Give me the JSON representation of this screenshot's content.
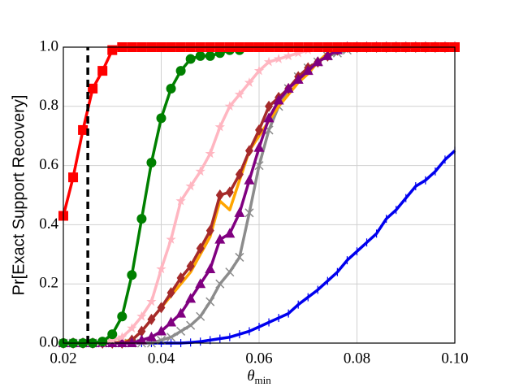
{
  "chart_data": {
    "type": "line",
    "ylabel": "Pr[Exact Support Recovery]",
    "xlabel": "θ",
    "xlabel_sub": "min",
    "xlim": [
      0.02,
      0.1
    ],
    "ylim": [
      0,
      1
    ],
    "xticks": [
      0.02,
      0.04,
      0.06,
      0.08,
      {
        "value": 0.1,
        "label": "0.10"
      }
    ],
    "yticks": [
      {
        "value": 0,
        "label": "0.0"
      },
      0.2,
      0.4,
      0.6,
      0.8,
      {
        "value": 1,
        "label": "1.0"
      }
    ],
    "grid": true,
    "reference_x": 0.025,
    "reference_color": "#000000",
    "x": [
      0.02,
      0.022,
      0.024,
      0.026,
      0.028,
      0.03,
      0.032,
      0.034,
      0.036,
      0.038,
      0.04,
      0.042,
      0.044,
      0.046,
      0.048,
      0.05,
      0.052,
      0.054,
      0.056,
      0.058,
      0.06,
      0.062,
      0.064,
      0.066,
      0.068,
      0.07,
      0.072,
      0.074,
      0.076,
      0.078,
      0.08,
      0.082,
      0.084,
      0.086,
      0.088,
      0.09,
      0.092,
      0.094,
      0.096,
      0.098,
      0.1
    ],
    "series": [
      {
        "color": "#0000ee",
        "marker": "tick",
        "values": [
          0,
          0,
          0,
          0,
          0,
          0,
          0,
          0,
          0,
          0,
          0,
          0,
          0,
          0.002,
          0.005,
          0.01,
          0.015,
          0.02,
          0.03,
          0.04,
          0.055,
          0.07,
          0.085,
          0.1,
          0.13,
          0.155,
          0.18,
          0.21,
          0.24,
          0.28,
          0.31,
          0.34,
          0.37,
          0.42,
          0.45,
          0.49,
          0.53,
          0.55,
          0.58,
          0.62,
          0.65
        ]
      },
      {
        "color": "#8c8c8c",
        "marker": "x",
        "values": [
          0,
          0,
          0,
          0,
          0,
          0,
          0,
          0,
          0,
          0,
          0.01,
          0.02,
          0.04,
          0.06,
          0.09,
          0.14,
          0.2,
          0.24,
          0.29,
          0.44,
          0.6,
          0.72,
          0.8,
          0.86,
          0.9,
          0.93,
          0.95,
          0.97,
          0.98,
          0.99,
          1,
          1,
          1,
          1,
          1,
          1,
          1,
          1,
          1,
          1,
          1
        ]
      },
      {
        "color": "#ffa500",
        "marker": "none",
        "values": [
          0,
          0,
          0,
          0,
          0,
          0,
          0.005,
          0.01,
          0.04,
          0.08,
          0.12,
          0.16,
          0.2,
          0.24,
          0.3,
          0.36,
          0.48,
          0.45,
          0.55,
          0.65,
          0.7,
          0.75,
          0.8,
          0.84,
          0.88,
          0.91,
          0.95,
          0.98,
          0.99,
          1,
          1,
          1,
          1,
          1,
          1,
          1,
          1,
          1,
          1,
          1,
          1
        ]
      },
      {
        "color": "#a52a2a",
        "marker": "diamond",
        "values": [
          0,
          0,
          0,
          0,
          0,
          0,
          0,
          0.01,
          0.04,
          0.08,
          0.12,
          0.17,
          0.22,
          0.26,
          0.32,
          0.38,
          0.5,
          0.51,
          0.57,
          0.65,
          0.72,
          0.8,
          0.83,
          0.86,
          0.9,
          0.93,
          0.95,
          0.97,
          0.99,
          1,
          1,
          1,
          1,
          1,
          1,
          1,
          1,
          1,
          1,
          1,
          1
        ]
      },
      {
        "color": "#800080",
        "marker": "triangle",
        "values": [
          0,
          0,
          0,
          0,
          0,
          0,
          0,
          0,
          0.01,
          0.02,
          0.04,
          0.07,
          0.1,
          0.15,
          0.2,
          0.25,
          0.35,
          0.37,
          0.44,
          0.55,
          0.66,
          0.76,
          0.82,
          0.86,
          0.89,
          0.92,
          0.95,
          0.97,
          0.99,
          1,
          1,
          1,
          1,
          1,
          1,
          1,
          1,
          1,
          1,
          1,
          1
        ]
      },
      {
        "color": "#ffb6c1",
        "marker": "star",
        "values": [
          0,
          0,
          0,
          0,
          0,
          0.01,
          0.02,
          0.05,
          0.09,
          0.14,
          0.25,
          0.35,
          0.48,
          0.53,
          0.58,
          0.64,
          0.73,
          0.8,
          0.84,
          0.88,
          0.92,
          0.95,
          0.96,
          0.97,
          0.98,
          0.99,
          1,
          1,
          1,
          1,
          1,
          1,
          1,
          1,
          1,
          1,
          1,
          1,
          1,
          1,
          1
        ]
      },
      {
        "color": "#008000",
        "marker": "circle",
        "values": [
          0,
          0,
          0,
          0,
          0.005,
          0.03,
          0.09,
          0.23,
          0.42,
          0.61,
          0.76,
          0.86,
          0.92,
          0.96,
          0.97,
          0.97,
          0.98,
          0.99,
          0.99,
          1,
          1,
          1,
          1,
          1,
          1,
          1,
          1,
          1,
          1,
          1,
          1,
          1,
          1,
          1,
          1,
          1,
          1,
          1,
          1,
          1,
          1
        ]
      },
      {
        "color": "#ff0000",
        "marker": "square",
        "values": [
          0.43,
          0.56,
          0.72,
          0.86,
          0.92,
          0.99,
          1,
          1,
          1,
          1,
          1,
          1,
          1,
          1,
          1,
          1,
          1,
          1,
          1,
          1,
          1,
          1,
          1,
          1,
          1,
          1,
          1,
          1,
          1,
          1,
          1,
          1,
          1,
          1,
          1,
          1,
          1,
          1,
          1,
          1,
          1
        ]
      }
    ]
  }
}
